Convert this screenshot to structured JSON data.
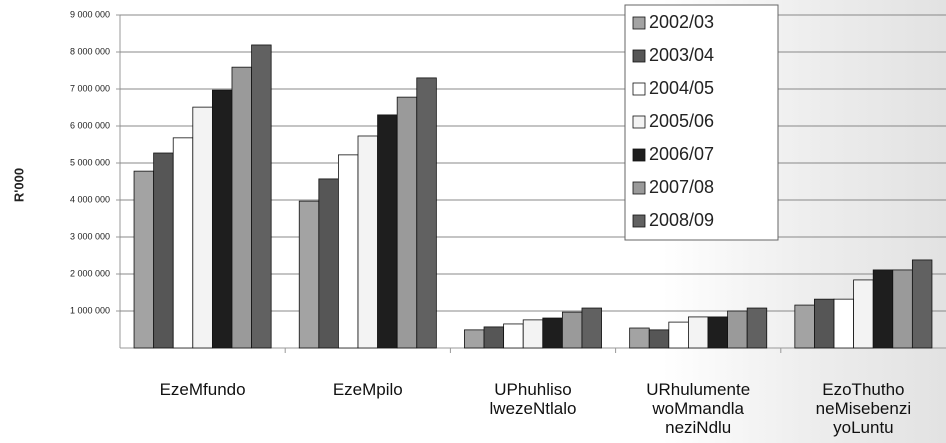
{
  "chart_data": {
    "type": "bar",
    "y_label": "R'000",
    "categories": [
      "EzeMfundo",
      "EzeMpilo",
      "UPhuhliso\nlwezeNtlalo",
      "URhulumente\nwoMmandla\nneziNdlu",
      "EzoThutho\nneMisebenzi\nyoLuntu"
    ],
    "series": [
      {
        "name": "2002/03",
        "color": "#a3a3a3",
        "values": [
          4780000,
          3970000,
          490000,
          540000,
          1160000
        ]
      },
      {
        "name": "2003/04",
        "color": "#565656",
        "values": [
          5270000,
          4570000,
          570000,
          490000,
          1320000
        ]
      },
      {
        "name": "2004/05",
        "color": "#ffffff",
        "values": [
          5680000,
          5220000,
          650000,
          700000,
          1320000
        ]
      },
      {
        "name": "2005/06",
        "color": "#f3f3f3",
        "values": [
          6510000,
          5730000,
          760000,
          840000,
          1840000
        ]
      },
      {
        "name": "2006/07",
        "color": "#1e1e1e",
        "values": [
          6970000,
          6300000,
          810000,
          840000,
          2110000
        ]
      },
      {
        "name": "2007/08",
        "color": "#9a9a9a",
        "values": [
          7590000,
          6780000,
          970000,
          1000000,
          2110000
        ]
      },
      {
        "name": "2008/09",
        "color": "#616161",
        "values": [
          8190000,
          7300000,
          1080000,
          1080000,
          2380000
        ]
      }
    ],
    "ylim": [
      0,
      9000000
    ],
    "yticks": [
      {
        "value": 1000000,
        "label": "1 000 000"
      },
      {
        "value": 2000000,
        "label": "2 000 000"
      },
      {
        "value": 3000000,
        "label": "3 000 000"
      },
      {
        "value": 4000000,
        "label": "4 000 000"
      },
      {
        "value": 5000000,
        "label": "5 000 000"
      },
      {
        "value": 6000000,
        "label": "6 000 000"
      },
      {
        "value": 7000000,
        "label": "7 000 000"
      },
      {
        "value": 8000000,
        "label": "8 000 000"
      },
      {
        "value": 9000000,
        "label": "9 000 000"
      }
    ],
    "grid": true,
    "legend": "top-right"
  }
}
